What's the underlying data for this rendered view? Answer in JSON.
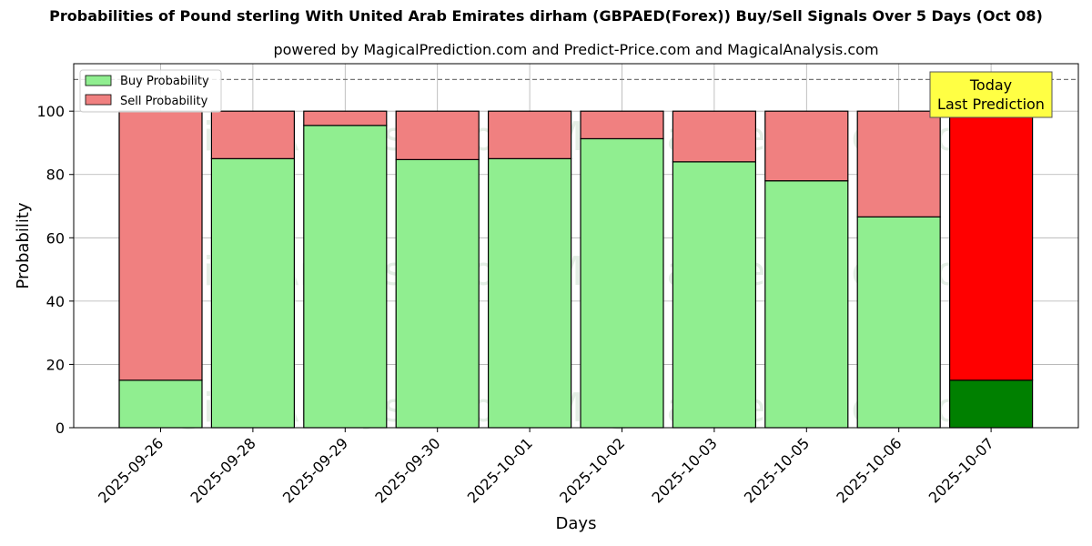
{
  "chart_data": {
    "type": "bar",
    "stacked": true,
    "title": "Probabilities of Pound sterling With United Arab Emirates dirham (GBPAED(Forex)) Buy/Sell Signals Over 5 Days (Oct 08)",
    "subtitle": "powered by MagicalPrediction.com and Predict-Price.com and MagicalAnalysis.com",
    "xlabel": "Days",
    "ylabel": "Probability",
    "ylim": [
      0,
      115
    ],
    "yticks": [
      0,
      20,
      40,
      60,
      80,
      100
    ],
    "categories": [
      "2025-09-26",
      "2025-09-28",
      "2025-09-29",
      "2025-09-30",
      "2025-10-01",
      "2025-10-02",
      "2025-10-03",
      "2025-10-05",
      "2025-10-06",
      "2025-10-07"
    ],
    "series": [
      {
        "name": "Buy Probability",
        "values": [
          15,
          85,
          95.5,
          84.7,
          85,
          91.3,
          84,
          78,
          66.6,
          15
        ]
      },
      {
        "name": "Sell Probability",
        "values": [
          85,
          15,
          4.5,
          15.3,
          15,
          8.7,
          16,
          22,
          33.4,
          85
        ]
      }
    ],
    "reference_line": 110,
    "grid": true,
    "legend_position": "top-left",
    "annotation": {
      "line1": "Today",
      "line2": "Last Prediction",
      "category": "2025-10-07"
    },
    "watermarks": [
      "MagicalAnalysis.com",
      "MagicalPrediction.com"
    ],
    "colors": {
      "buy": "#90ee90",
      "sell": "#f08080",
      "buy_highlight": "#008000",
      "sell_highlight": "#ff0000",
      "annotation_bg": "#ffff44",
      "grid": "#b0b0b0"
    }
  }
}
